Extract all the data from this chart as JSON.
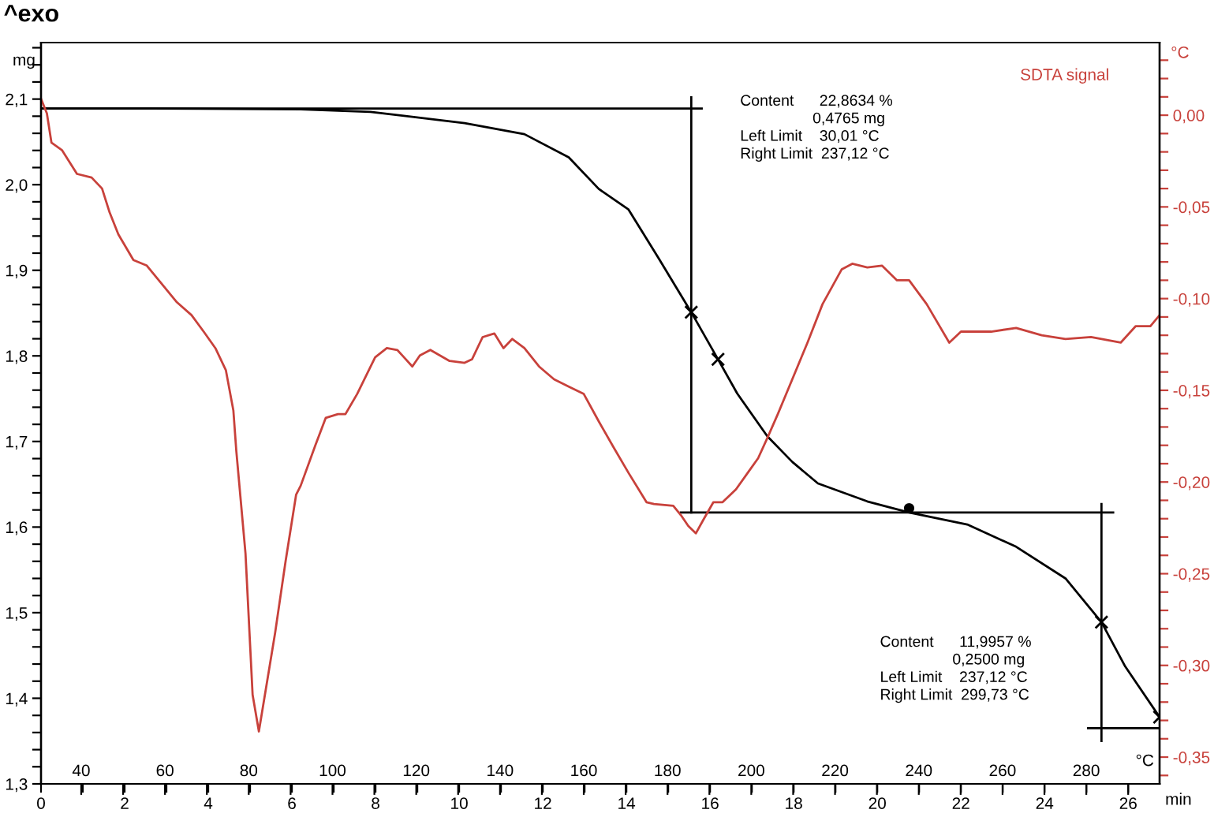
{
  "chart_data": {
    "type": "line",
    "title": "^exo",
    "xlabel": "min",
    "ylabel": "mg",
    "y2label": "°C",
    "x2label": "°C",
    "xlim": [
      0,
      26.75
    ],
    "ylim": [
      1.3,
      2.166
    ],
    "y2lim": [
      -0.3646,
      0.0396
    ],
    "x2lim": [
      30.4,
      297.5
    ],
    "xticks": [
      0,
      {
        "value": 1,
        "label": null
      },
      2,
      {
        "value": 3,
        "label": null
      },
      4,
      {
        "value": 5,
        "label": null
      },
      6,
      {
        "value": 7,
        "label": null
      },
      8,
      {
        "value": 9,
        "label": null
      },
      10,
      {
        "value": 11,
        "label": null
      },
      12,
      {
        "value": 13,
        "label": null
      },
      14,
      {
        "value": 15,
        "label": null
      },
      16,
      {
        "value": 17,
        "label": null
      },
      18,
      {
        "value": 19,
        "label": null
      },
      20,
      {
        "value": 21,
        "label": null
      },
      22,
      {
        "value": 23,
        "label": null
      },
      24,
      {
        "value": 25,
        "label": null
      },
      26
    ],
    "x2ticks": [
      40,
      {
        "value": 50,
        "label": null
      },
      60,
      {
        "value": 70,
        "label": null
      },
      80,
      {
        "value": 90,
        "label": null
      },
      100,
      {
        "value": 110,
        "label": null
      },
      120,
      {
        "value": 130,
        "label": null
      },
      140,
      {
        "value": 150,
        "label": null
      },
      160,
      {
        "value": 170,
        "label": null
      },
      180,
      {
        "value": 190,
        "label": null
      },
      200,
      {
        "value": 210,
        "label": null
      },
      220,
      {
        "value": 230,
        "label": null
      },
      240,
      {
        "value": 250,
        "label": null
      },
      260,
      {
        "value": 270,
        "label": null
      },
      280,
      {
        "value": 290,
        "label": null
      }
    ],
    "yticks": [
      {
        "value": 1.3,
        "label": "1,3"
      },
      {
        "value": 1.32,
        "label": null
      },
      {
        "value": 1.34,
        "label": null
      },
      {
        "value": 1.36,
        "label": null
      },
      {
        "value": 1.38,
        "label": null
      },
      {
        "value": 1.4,
        "label": "1,4"
      },
      {
        "value": 1.42,
        "label": null
      },
      {
        "value": 1.44,
        "label": null
      },
      {
        "value": 1.46,
        "label": null
      },
      {
        "value": 1.48,
        "label": null
      },
      {
        "value": 1.5,
        "label": "1,5"
      },
      {
        "value": 1.52,
        "label": null
      },
      {
        "value": 1.54,
        "label": null
      },
      {
        "value": 1.56,
        "label": null
      },
      {
        "value": 1.58,
        "label": null
      },
      {
        "value": 1.6,
        "label": "1,6"
      },
      {
        "value": 1.62,
        "label": null
      },
      {
        "value": 1.64,
        "label": null
      },
      {
        "value": 1.66,
        "label": null
      },
      {
        "value": 1.68,
        "label": null
      },
      {
        "value": 1.7,
        "label": "1,7"
      },
      {
        "value": 1.72,
        "label": null
      },
      {
        "value": 1.74,
        "label": null
      },
      {
        "value": 1.76,
        "label": null
      },
      {
        "value": 1.78,
        "label": null
      },
      {
        "value": 1.8,
        "label": "1,8"
      },
      {
        "value": 1.82,
        "label": null
      },
      {
        "value": 1.84,
        "label": null
      },
      {
        "value": 1.86,
        "label": null
      },
      {
        "value": 1.88,
        "label": null
      },
      {
        "value": 1.9,
        "label": "1,9"
      },
      {
        "value": 1.92,
        "label": null
      },
      {
        "value": 1.94,
        "label": null
      },
      {
        "value": 1.96,
        "label": null
      },
      {
        "value": 1.98,
        "label": null
      },
      {
        "value": 2.0,
        "label": "2,0"
      },
      {
        "value": 2.02,
        "label": null
      },
      {
        "value": 2.04,
        "label": null
      },
      {
        "value": 2.06,
        "label": null
      },
      {
        "value": 2.08,
        "label": null
      },
      {
        "value": 2.1,
        "label": "2,1"
      },
      {
        "value": 2.12,
        "label": null
      },
      {
        "value": 2.14,
        "label": null
      },
      {
        "value": 2.16,
        "label": null
      }
    ],
    "y2ticks": [
      {
        "value": 0.03,
        "label": null
      },
      {
        "value": 0.02,
        "label": null
      },
      {
        "value": 0.01,
        "label": null
      },
      {
        "value": 0.0,
        "label": "0,00"
      },
      {
        "value": -0.01,
        "label": null
      },
      {
        "value": -0.02,
        "label": null
      },
      {
        "value": -0.03,
        "label": null
      },
      {
        "value": -0.04,
        "label": null
      },
      {
        "value": -0.05,
        "label": "-0,05"
      },
      {
        "value": -0.06,
        "label": null
      },
      {
        "value": -0.07,
        "label": null
      },
      {
        "value": -0.08,
        "label": null
      },
      {
        "value": -0.09,
        "label": null
      },
      {
        "value": -0.1,
        "label": "-0,10"
      },
      {
        "value": -0.11,
        "label": null
      },
      {
        "value": -0.12,
        "label": null
      },
      {
        "value": -0.13,
        "label": null
      },
      {
        "value": -0.14,
        "label": null
      },
      {
        "value": -0.15,
        "label": "-0,15"
      },
      {
        "value": -0.16,
        "label": null
      },
      {
        "value": -0.17,
        "label": null
      },
      {
        "value": -0.18,
        "label": null
      },
      {
        "value": -0.19,
        "label": null
      },
      {
        "value": -0.2,
        "label": "-0,20"
      },
      {
        "value": -0.21,
        "label": null
      },
      {
        "value": -0.22,
        "label": null
      },
      {
        "value": -0.23,
        "label": null
      },
      {
        "value": -0.24,
        "label": null
      },
      {
        "value": -0.25,
        "label": "-0,25"
      },
      {
        "value": -0.26,
        "label": null
      },
      {
        "value": -0.27,
        "label": null
      },
      {
        "value": -0.28,
        "label": null
      },
      {
        "value": -0.29,
        "label": null
      },
      {
        "value": -0.3,
        "label": "-0,30"
      },
      {
        "value": -0.31,
        "label": null
      },
      {
        "value": -0.32,
        "label": null
      },
      {
        "value": -0.33,
        "label": null
      },
      {
        "value": -0.34,
        "label": null
      },
      {
        "value": -0.35,
        "label": "-0,35"
      },
      {
        "value": -0.36,
        "label": null
      }
    ],
    "grid": false,
    "legend": false,
    "series": [
      {
        "color": "#000000",
        "x": [
          0,
          2.64,
          6.21,
          7.88,
          10.13,
          11.56,
          12.62,
          13.34,
          14.05,
          14.77,
          15.55,
          16.19,
          16.65,
          17.37,
          17.97,
          18.58,
          19.76,
          20.76,
          22.15,
          23.32,
          24.5,
          25.36,
          25.93,
          26.75
        ],
        "values": [
          2.089,
          2.089,
          2.088,
          2.085,
          2.072,
          2.059,
          2.032,
          1.995,
          1.971,
          1.914,
          1.851,
          1.796,
          1.756,
          1.706,
          1.676,
          1.651,
          1.63,
          1.617,
          1.603,
          1.577,
          1.54,
          1.489,
          1.437,
          1.378
        ]
      },
      {
        "name": "SDTA signal",
        "axis": "y2",
        "color": "#c8413b",
        "x": [
          0,
          0.14,
          0.25,
          0.5,
          0.86,
          1.21,
          1.46,
          1.64,
          1.85,
          2.21,
          2.53,
          2.89,
          3.25,
          3.6,
          3.89,
          4.17,
          4.42,
          4.6,
          4.67,
          4.89,
          5.06,
          5.21,
          5.6,
          5.85,
          6.1,
          6.21,
          6.56,
          6.81,
          7.1,
          7.28,
          7.56,
          7.99,
          8.27,
          8.52,
          8.88,
          9.06,
          9.31,
          9.77,
          10.13,
          10.31,
          10.56,
          10.84,
          11.06,
          11.27,
          11.56,
          11.91,
          12.27,
          12.62,
          12.98,
          13.34,
          13.69,
          14.05,
          14.48,
          14.66,
          15.12,
          15.3,
          15.48,
          15.66,
          15.83,
          16.08,
          16.3,
          16.62,
          16.9,
          17.15,
          17.37,
          17.62,
          18.33,
          18.69,
          19.15,
          19.4,
          19.76,
          20.11,
          20.47,
          20.76,
          21.18,
          21.72,
          22.0,
          22.72,
          23.32,
          23.93,
          24.5,
          25.11,
          25.82,
          26.18,
          26.53,
          26.75
        ],
        "values": [
          0.009,
          0.001,
          -0.015,
          -0.019,
          -0.032,
          -0.034,
          -0.04,
          -0.053,
          -0.065,
          -0.079,
          -0.082,
          -0.092,
          -0.102,
          -0.109,
          -0.118,
          -0.127,
          -0.139,
          -0.161,
          -0.183,
          -0.239,
          -0.316,
          -0.336,
          -0.282,
          -0.243,
          -0.207,
          -0.202,
          -0.18,
          -0.165,
          -0.163,
          -0.163,
          -0.152,
          -0.132,
          -0.127,
          -0.128,
          -0.137,
          -0.131,
          -0.128,
          -0.134,
          -0.135,
          -0.133,
          -0.121,
          -0.119,
          -0.127,
          -0.122,
          -0.127,
          -0.137,
          -0.144,
          -0.148,
          -0.152,
          -0.167,
          -0.181,
          -0.195,
          -0.211,
          -0.212,
          -0.213,
          -0.218,
          -0.224,
          -0.228,
          -0.221,
          -0.211,
          -0.211,
          -0.204,
          -0.195,
          -0.187,
          -0.176,
          -0.163,
          -0.124,
          -0.103,
          -0.084,
          -0.081,
          -0.083,
          -0.082,
          -0.09,
          -0.09,
          -0.103,
          -0.124,
          -0.118,
          -0.118,
          -0.116,
          -0.12,
          -0.122,
          -0.121,
          -0.124,
          -0.115,
          -0.115,
          -0.109
        ]
      },
      {
        "color": "#000000",
        "x": [
          0,
          15.8
        ],
        "values": [
          2.089,
          2.089
        ]
      },
      {
        "type": "line",
        "color": "#000000",
        "x": [
          15.55,
          15.55
        ],
        "values": [
          2.102,
          1.617
        ]
      },
      {
        "type": "line",
        "color": "#000000",
        "x": [
          15.3,
          25.64
        ],
        "values": [
          1.617,
          1.617
        ]
      },
      {
        "type": "line",
        "color": "#000000",
        "x": [
          25.36,
          25.36
        ],
        "values": [
          1.627,
          1.35
        ]
      },
      {
        "type": "line",
        "color": "#000000",
        "x": [
          25.04,
          26.75
        ],
        "values": [
          1.365,
          1.365
        ]
      },
      {
        "type": "scatter",
        "color": "#000000",
        "marker": "cross",
        "x": [
          15.55,
          16.19,
          25.36,
          26.75
        ],
        "values": [
          1.851,
          1.796,
          1.489,
          1.378
        ]
      },
      {
        "type": "scatter",
        "color": "#000000",
        "marker": "circle",
        "x": [
          20.76
        ],
        "values": [
          1.622
        ]
      }
    ],
    "annotations": [
      "Content      22,8634 %\n                 0,4765 mg\nLeft Limit    30,01 °C\nRight Limit  237,12 °C",
      "Content      11,9957 %\n                 0,2500 mg\nLeft Limit    237,12 °C\nRight Limit  299,73 °C"
    ]
  }
}
